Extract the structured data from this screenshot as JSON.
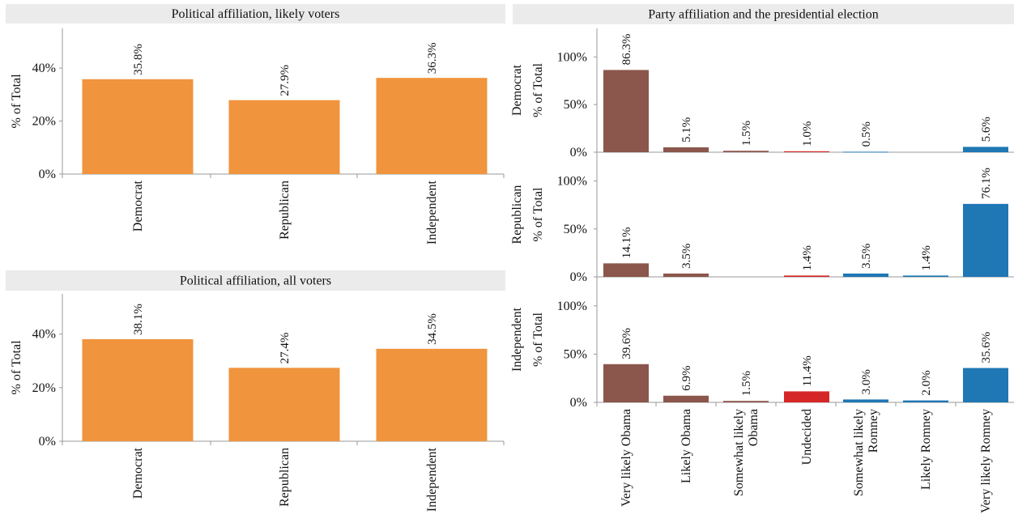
{
  "chart_data": [
    {
      "id": "likely",
      "type": "bar",
      "title": "Political affiliation, likely voters",
      "ylabel": "% of Total",
      "ylim": [
        0,
        0.55
      ],
      "yticks": [
        "0%",
        "20%",
        "40%"
      ],
      "ytick_values": [
        0,
        0.2,
        0.4
      ],
      "categories": [
        "Democrat",
        "Republican",
        "Independent"
      ],
      "values": [
        0.358,
        0.279,
        0.363
      ],
      "value_labels": [
        "35.8%",
        "27.9%",
        "36.3%"
      ],
      "color": "#f0943e"
    },
    {
      "id": "all",
      "type": "bar",
      "title": "Political affiliation, all voters",
      "ylabel": "% of Total",
      "ylim": [
        0,
        0.55
      ],
      "yticks": [
        "0%",
        "20%",
        "40%"
      ],
      "ytick_values": [
        0,
        0.2,
        0.4
      ],
      "categories": [
        "Democrat",
        "Republican",
        "Independent"
      ],
      "values": [
        0.381,
        0.274,
        0.345
      ],
      "value_labels": [
        "38.1%",
        "27.4%",
        "34.5%"
      ],
      "color": "#f0943e"
    },
    {
      "id": "party",
      "type": "bar",
      "title": "Party affiliation and the presidential election",
      "ylabel": "% of Total",
      "ylim": [
        0,
        1.3
      ],
      "yticks": [
        "0%",
        "50%",
        "100%"
      ],
      "ytick_values": [
        0,
        0.5,
        1.0
      ],
      "categories": [
        "Very likely Obama",
        "Likely Obama",
        "Somewhat likely Obama",
        "Undecided",
        "Somewhat likely Romney",
        "Likely Romney",
        "Very likely Romney"
      ],
      "category_lines": [
        [
          "Very likely Obama"
        ],
        [
          "Likely Obama"
        ],
        [
          "Somewhat likely",
          "Obama"
        ],
        [
          "Undecided"
        ],
        [
          "Somewhat likely",
          "Romney"
        ],
        [
          "Likely Romney"
        ],
        [
          "Very likely Romney"
        ]
      ],
      "category_colors": [
        "#8b564b",
        "#8b564b",
        "#8b564b",
        "#d62728",
        "#1f77b4",
        "#1f77b4",
        "#1f77b4"
      ],
      "rows": [
        {
          "name": "Democrat",
          "values": [
            0.863,
            0.051,
            0.015,
            0.01,
            0.005,
            null,
            0.056
          ],
          "value_labels": [
            "86.3%",
            "5.1%",
            "1.5%",
            "1.0%",
            "0.5%",
            "",
            "5.6%"
          ]
        },
        {
          "name": "Republican",
          "values": [
            0.141,
            0.035,
            null,
            0.014,
            0.035,
            0.014,
            0.761
          ],
          "value_labels": [
            "14.1%",
            "3.5%",
            "",
            "1.4%",
            "3.5%",
            "1.4%",
            "76.1%"
          ]
        },
        {
          "name": "Independent",
          "values": [
            0.396,
            0.069,
            0.015,
            0.114,
            0.03,
            0.02,
            0.356
          ],
          "value_labels": [
            "39.6%",
            "6.9%",
            "1.5%",
            "11.4%",
            "3.0%",
            "2.0%",
            "35.6%"
          ]
        }
      ]
    }
  ]
}
